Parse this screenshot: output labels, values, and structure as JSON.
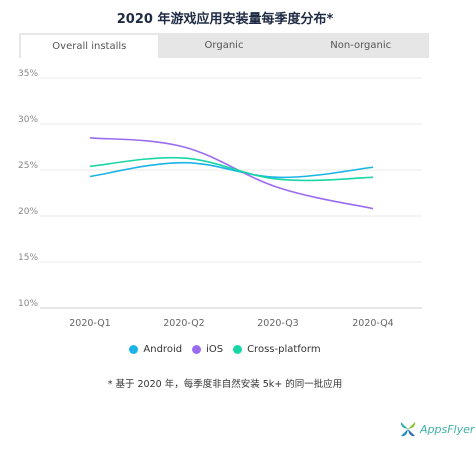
{
  "title": "2020 年游戏应用安装量每季度分布*",
  "tabs": [
    {
      "label": "Overall installs",
      "active": true
    },
    {
      "label": "Organic",
      "active": false
    },
    {
      "label": "Non-organic",
      "active": false
    }
  ],
  "legend": [
    {
      "label": "Android",
      "color": "#1ab4e8"
    },
    {
      "label": "iOS",
      "color": "#9b6cf2"
    },
    {
      "label": "Cross-platform",
      "color": "#19d6a6"
    }
  ],
  "footnote": "* 基于 2020 年，每季度非自然安装 5k+ 的同一批应用",
  "logo": {
    "text": "AppsFlyer",
    "icon": "appsflyer-icon"
  },
  "chart_data": {
    "type": "line",
    "categories": [
      "2020-Q1",
      "2020-Q2",
      "2020-Q3",
      "2020-Q4"
    ],
    "series": [
      {
        "name": "Android",
        "color": "#1ab4e8",
        "values": [
          24.3,
          25.8,
          24.2,
          25.3
        ]
      },
      {
        "name": "iOS",
        "color": "#9b6cf2",
        "values": [
          28.5,
          27.5,
          23.1,
          20.8
        ]
      },
      {
        "name": "Cross-platform",
        "color": "#19d6a6",
        "values": [
          25.4,
          26.3,
          24.0,
          24.2
        ]
      }
    ],
    "yticks": [
      "35%",
      "30%",
      "25%",
      "20%",
      "15%",
      "10%"
    ],
    "ylim": [
      10,
      35
    ],
    "grid": true,
    "legend_position": "bottom"
  }
}
